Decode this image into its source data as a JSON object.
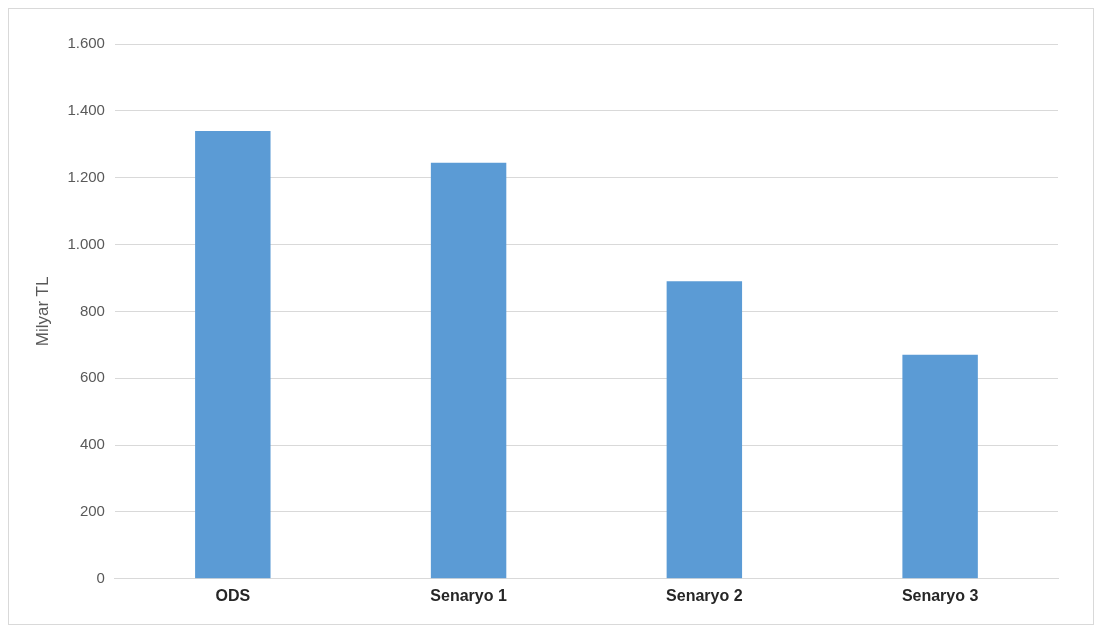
{
  "chart_data": {
    "type": "bar",
    "ylabel": "Milyar TL",
    "categories": [
      "ODS",
      "Senaryo 1",
      "Senaryo 2",
      "Senaryo 3"
    ],
    "values": [
      1340,
      1245,
      890,
      670
    ],
    "color": "#5b9bd5",
    "ylim": [
      0,
      1600
    ],
    "yticks": [
      0,
      {
        "value": 200,
        "label": "200"
      },
      {
        "value": 400,
        "label": "400"
      },
      {
        "value": 600,
        "label": "600"
      },
      {
        "value": 800,
        "label": "800"
      },
      {
        "value": 1000,
        "label": "1.000"
      },
      {
        "value": 1200,
        "label": "1.200"
      },
      {
        "value": 1400,
        "label": "1.400"
      },
      {
        "value": 1600,
        "label": "1.600"
      }
    ],
    "grid": "y",
    "legend": false
  }
}
